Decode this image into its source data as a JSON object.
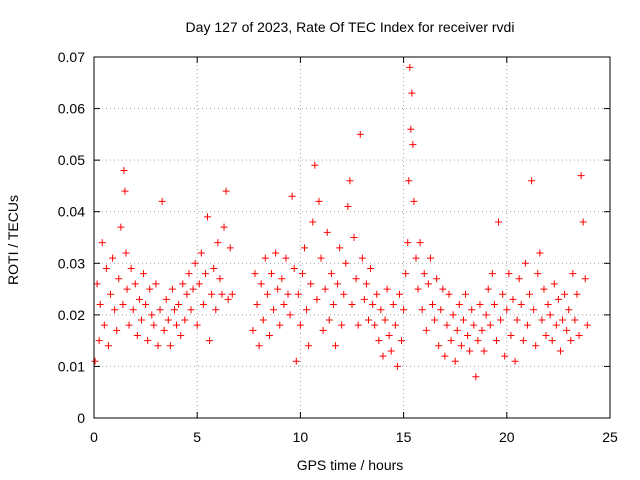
{
  "chart_data": {
    "type": "scatter",
    "title": "Day 127 of 2023, Rate Of TEC Index for receiver rvdi",
    "xlabel": "GPS time / hours",
    "ylabel": "ROTI / TECUs",
    "xlim": [
      0,
      25
    ],
    "ylim": [
      0,
      0.07
    ],
    "xticks": [
      0,
      5,
      10,
      15,
      20,
      25
    ],
    "xtick_labels": [
      "0",
      "5",
      "10",
      "15",
      "20",
      "25"
    ],
    "yticks": [
      0,
      0.01,
      0.02,
      0.03,
      0.04,
      0.05,
      0.06,
      0.07
    ],
    "ytick_labels": [
      "0",
      "0.01",
      "0.02",
      "0.03",
      "0.04",
      "0.05",
      "0.06",
      "0.07"
    ],
    "grid": true,
    "marker": "+",
    "color": "#ff0000",
    "series": [
      {
        "x": [
          0.05,
          0.15,
          0.25,
          0.3,
          0.4,
          0.5,
          0.6,
          0.7,
          0.8,
          0.9,
          1.0,
          1.1,
          1.2,
          1.3,
          1.4,
          1.45,
          1.5,
          1.55,
          1.6,
          1.7,
          1.8,
          1.9,
          2.0,
          2.1,
          2.2,
          2.3,
          2.4,
          2.5,
          2.6,
          2.7,
          2.8,
          2.9,
          3.0,
          3.1,
          3.2,
          3.3,
          3.4,
          3.5,
          3.6,
          3.7,
          3.8,
          3.9,
          4.0,
          4.1,
          4.2,
          4.3,
          4.4,
          4.5,
          4.6,
          4.7,
          4.8,
          4.9,
          5.0,
          5.1,
          5.2,
          5.3,
          5.4,
          5.5,
          5.6,
          5.7,
          5.8,
          5.9,
          6.0,
          6.1,
          6.2,
          6.3,
          6.4,
          6.5,
          6.6,
          6.7,
          7.7,
          7.8,
          7.9,
          8.0,
          8.1,
          8.2,
          8.3,
          8.4,
          8.5,
          8.6,
          8.7,
          8.8,
          8.9,
          9.0,
          9.1,
          9.2,
          9.3,
          9.4,
          9.5,
          9.6,
          9.7,
          9.8,
          9.9,
          10.0,
          10.1,
          10.2,
          10.3,
          10.4,
          10.5,
          10.6,
          10.7,
          10.8,
          10.9,
          11.0,
          11.1,
          11.2,
          11.3,
          11.4,
          11.5,
          11.6,
          11.7,
          11.8,
          11.9,
          12.0,
          12.1,
          12.2,
          12.3,
          12.4,
          12.5,
          12.6,
          12.7,
          12.8,
          12.9,
          13.0,
          13.1,
          13.2,
          13.3,
          13.4,
          13.5,
          13.6,
          13.7,
          13.8,
          13.9,
          14.0,
          14.1,
          14.2,
          14.3,
          14.4,
          14.5,
          14.6,
          14.7,
          14.8,
          14.9,
          15.0,
          15.1,
          15.2,
          15.25,
          15.3,
          15.35,
          15.4,
          15.45,
          15.5,
          15.6,
          15.7,
          15.8,
          15.9,
          16.0,
          16.1,
          16.2,
          16.3,
          16.4,
          16.5,
          16.6,
          16.7,
          16.8,
          16.9,
          17.0,
          17.1,
          17.2,
          17.3,
          17.4,
          17.5,
          17.6,
          17.7,
          17.8,
          17.9,
          18.0,
          18.1,
          18.2,
          18.3,
          18.4,
          18.5,
          18.6,
          18.7,
          18.8,
          18.9,
          19.0,
          19.1,
          19.2,
          19.3,
          19.4,
          19.5,
          19.6,
          19.7,
          19.8,
          19.9,
          20.0,
          20.1,
          20.2,
          20.3,
          20.4,
          20.5,
          20.6,
          20.7,
          20.8,
          20.9,
          21.0,
          21.1,
          21.2,
          21.3,
          21.4,
          21.5,
          21.6,
          21.7,
          21.8,
          21.9,
          22.0,
          22.1,
          22.2,
          22.3,
          22.4,
          22.5,
          22.6,
          22.7,
          22.8,
          22.9,
          23.0,
          23.1,
          23.2,
          23.3,
          23.4,
          23.5,
          23.6,
          23.7,
          23.8,
          23.9
        ],
        "y": [
          0.011,
          0.026,
          0.015,
          0.022,
          0.034,
          0.018,
          0.029,
          0.014,
          0.024,
          0.031,
          0.021,
          0.017,
          0.027,
          0.037,
          0.022,
          0.048,
          0.044,
          0.032,
          0.025,
          0.018,
          0.029,
          0.021,
          0.026,
          0.016,
          0.023,
          0.019,
          0.028,
          0.022,
          0.015,
          0.025,
          0.02,
          0.018,
          0.026,
          0.014,
          0.021,
          0.042,
          0.017,
          0.023,
          0.019,
          0.014,
          0.025,
          0.021,
          0.018,
          0.022,
          0.016,
          0.026,
          0.019,
          0.024,
          0.028,
          0.021,
          0.025,
          0.03,
          0.018,
          0.026,
          0.032,
          0.022,
          0.028,
          0.039,
          0.015,
          0.024,
          0.029,
          0.021,
          0.034,
          0.027,
          0.024,
          0.037,
          0.044,
          0.023,
          0.033,
          0.024,
          0.017,
          0.028,
          0.022,
          0.014,
          0.026,
          0.019,
          0.031,
          0.024,
          0.016,
          0.028,
          0.021,
          0.032,
          0.025,
          0.018,
          0.027,
          0.022,
          0.031,
          0.024,
          0.02,
          0.043,
          0.029,
          0.011,
          0.024,
          0.018,
          0.028,
          0.033,
          0.021,
          0.014,
          0.026,
          0.038,
          0.049,
          0.023,
          0.042,
          0.031,
          0.017,
          0.025,
          0.036,
          0.019,
          0.028,
          0.022,
          0.014,
          0.026,
          0.033,
          0.018,
          0.024,
          0.03,
          0.041,
          0.046,
          0.022,
          0.035,
          0.027,
          0.018,
          0.055,
          0.031,
          0.023,
          0.026,
          0.019,
          0.029,
          0.022,
          0.018,
          0.024,
          0.015,
          0.021,
          0.012,
          0.019,
          0.025,
          0.016,
          0.013,
          0.022,
          0.018,
          0.01,
          0.024,
          0.015,
          0.021,
          0.028,
          0.034,
          0.046,
          0.068,
          0.056,
          0.063,
          0.053,
          0.042,
          0.031,
          0.025,
          0.034,
          0.021,
          0.028,
          0.017,
          0.026,
          0.031,
          0.022,
          0.019,
          0.027,
          0.014,
          0.021,
          0.025,
          0.012,
          0.018,
          0.024,
          0.015,
          0.02,
          0.011,
          0.017,
          0.022,
          0.014,
          0.019,
          0.024,
          0.016,
          0.013,
          0.021,
          0.018,
          0.008,
          0.015,
          0.022,
          0.017,
          0.013,
          0.02,
          0.025,
          0.018,
          0.028,
          0.022,
          0.015,
          0.038,
          0.019,
          0.024,
          0.012,
          0.021,
          0.028,
          0.016,
          0.023,
          0.011,
          0.019,
          0.027,
          0.022,
          0.015,
          0.03,
          0.018,
          0.024,
          0.046,
          0.021,
          0.014,
          0.028,
          0.032,
          0.019,
          0.025,
          0.016,
          0.022,
          0.02,
          0.015,
          0.026,
          0.018,
          0.023,
          0.013,
          0.019,
          0.024,
          0.017,
          0.021,
          0.015,
          0.028,
          0.019,
          0.024,
          0.016,
          0.047,
          0.038,
          0.027,
          0.018
        ]
      }
    ]
  }
}
